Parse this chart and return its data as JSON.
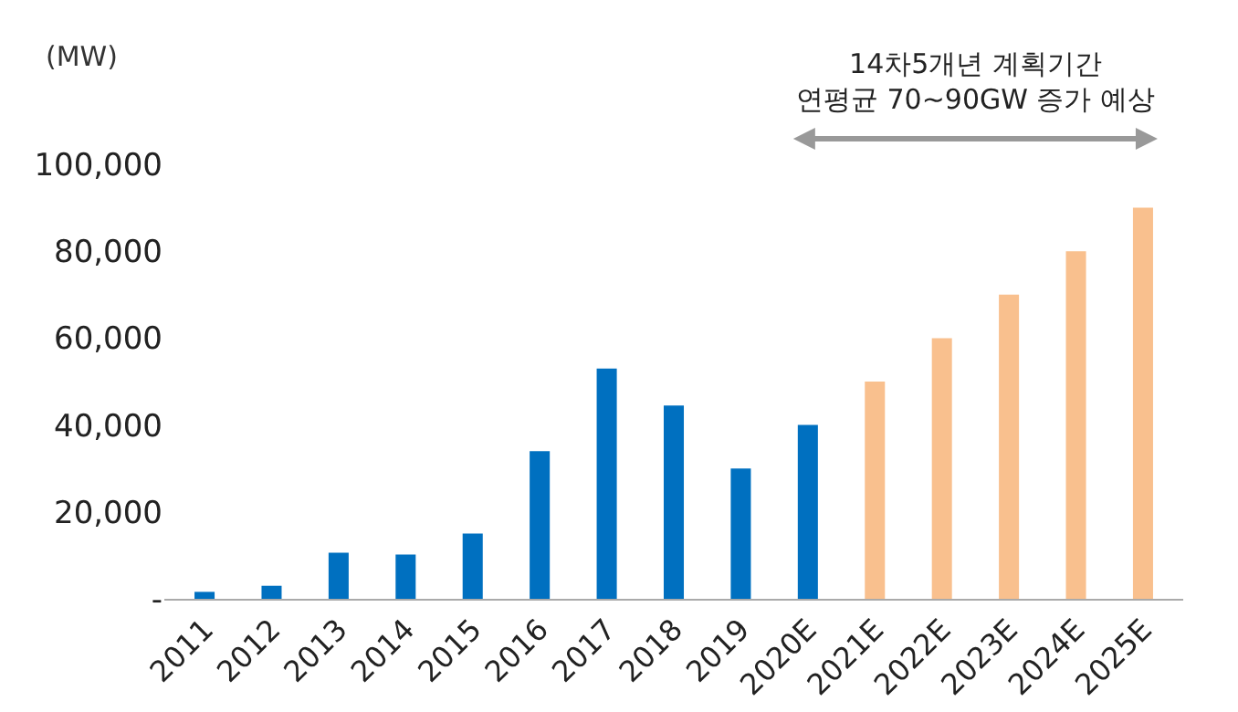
{
  "chart_data": {
    "type": "bar",
    "ylabel": "(MW)",
    "categories": [
      "2011",
      "2012",
      "2013",
      "2014",
      "2015",
      "2016",
      "2017",
      "2018",
      "2019",
      "2020E",
      "2021E",
      "2022E",
      "2023E",
      "2024E",
      "2025E"
    ],
    "values": [
      1600,
      3000,
      10600,
      10200,
      15000,
      34000,
      53000,
      44500,
      30000,
      40000,
      50000,
      60000,
      70000,
      80000,
      90000
    ],
    "colors": [
      "#0070c0",
      "#0070c0",
      "#0070c0",
      "#0070c0",
      "#0070c0",
      "#0070c0",
      "#0070c0",
      "#0070c0",
      "#0070c0",
      "#0070c0",
      "#f9c08e",
      "#f9c08e",
      "#f9c08e",
      "#f9c08e",
      "#f9c08e"
    ],
    "ylim": [
      0,
      100000
    ],
    "yticks": [
      {
        "value": 0,
        "label": "-"
      },
      {
        "value": 20000,
        "label": "20,000"
      },
      {
        "value": 40000,
        "label": "40,000"
      },
      {
        "value": 60000,
        "label": "60,000"
      },
      {
        "value": 80000,
        "label": "80,000"
      },
      {
        "value": 100000,
        "label": "100,000"
      }
    ],
    "grid": false,
    "annotations": [
      "14차5개년 계획기간\n연평균 70~90GW 증가 예상"
    ]
  }
}
